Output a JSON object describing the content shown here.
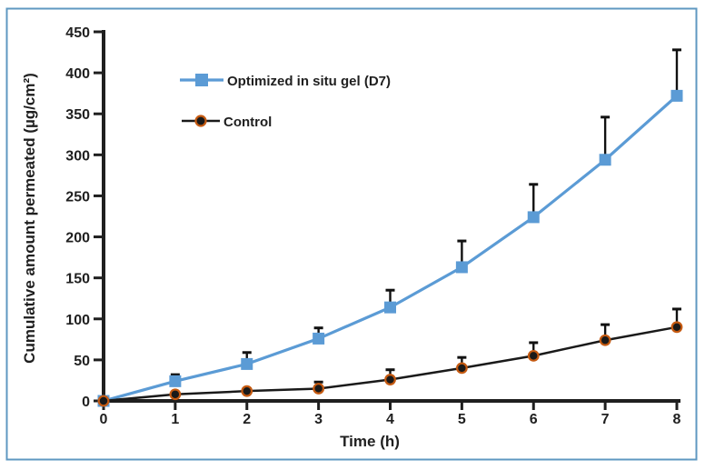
{
  "figure": {
    "background_color": "#ffffff",
    "border_color": "#5f98c1",
    "text_color": "#1f1f1f",
    "error_bar_color": "#111111"
  },
  "chart_data": {
    "type": "line",
    "title": "",
    "xlabel": "Time (h)",
    "ylabel": "Cumulative amount permeated (µg/cm²)",
    "x": [
      0,
      1,
      2,
      3,
      4,
      5,
      6,
      7,
      8
    ],
    "xlim": [
      0,
      8
    ],
    "ylim": [
      0,
      450
    ],
    "x_ticks": [
      0,
      1,
      2,
      3,
      4,
      5,
      6,
      7,
      8
    ],
    "y_ticks": [
      0,
      50,
      100,
      150,
      200,
      250,
      300,
      350,
      400,
      450
    ],
    "grid": false,
    "legend_position": "inside-top-left",
    "series": [
      {
        "name": "Optimized in situ gel (D7)",
        "marker": "square",
        "color": "#5B9BD5",
        "line_width": 3.2,
        "values": [
          0,
          24,
          45,
          76,
          114,
          163,
          224,
          294,
          372
        ],
        "error_up": [
          0,
          8,
          14,
          13,
          21,
          32,
          40,
          52,
          56
        ]
      },
      {
        "name": "Control",
        "marker": "circle",
        "color": "#1a1a1a",
        "marker_ring_color": "#C55A11",
        "line_width": 2.5,
        "values": [
          0,
          8,
          12,
          15,
          26,
          40,
          55,
          74,
          90
        ],
        "error_up": [
          0,
          2,
          3,
          8,
          12,
          13,
          16,
          19,
          22
        ]
      }
    ]
  }
}
